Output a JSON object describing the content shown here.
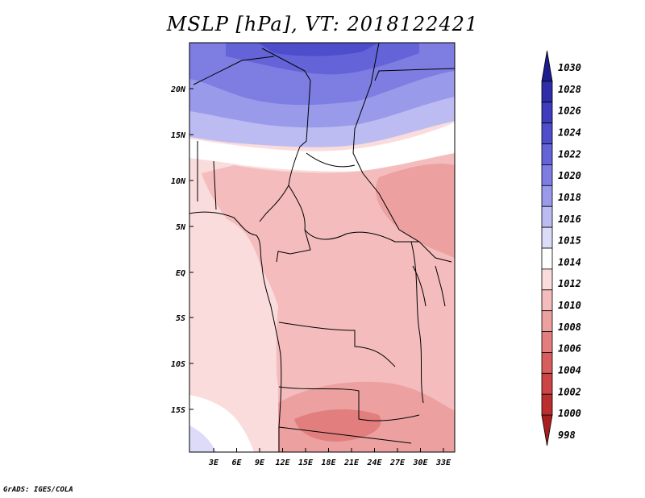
{
  "title": "MSLP [hPa], VT: 2018122421",
  "credit": "GrADS: IGES/COLA",
  "map": {
    "lat_labels": [
      "20N",
      "15N",
      "10N",
      "5N",
      "EQ",
      "5S",
      "10S",
      "15S"
    ],
    "lon_labels": [
      "3E",
      "6E",
      "9E",
      "12E",
      "15E",
      "18E",
      "21E",
      "24E",
      "27E",
      "30E",
      "33E"
    ]
  },
  "colorbar": {
    "levels": [
      "1030",
      "1028",
      "1026",
      "1024",
      "1022",
      "1020",
      "1018",
      "1016",
      "1015",
      "1014",
      "1012",
      "1010",
      "1008",
      "1006",
      "1004",
      "1002",
      "1000",
      "998"
    ],
    "colors": [
      "#1c1c8c",
      "#2e2ea8",
      "#3d3dbe",
      "#4e4ecc",
      "#6464d8",
      "#7d7de2",
      "#9a9aea",
      "#bcbcf2",
      "#dcdcf8",
      "#ffffff",
      "#fadcdc",
      "#f4bcbc",
      "#eca0a0",
      "#e27e7e",
      "#d85e5e",
      "#cc4444",
      "#bc2e2e",
      "#a81e1e"
    ]
  }
}
